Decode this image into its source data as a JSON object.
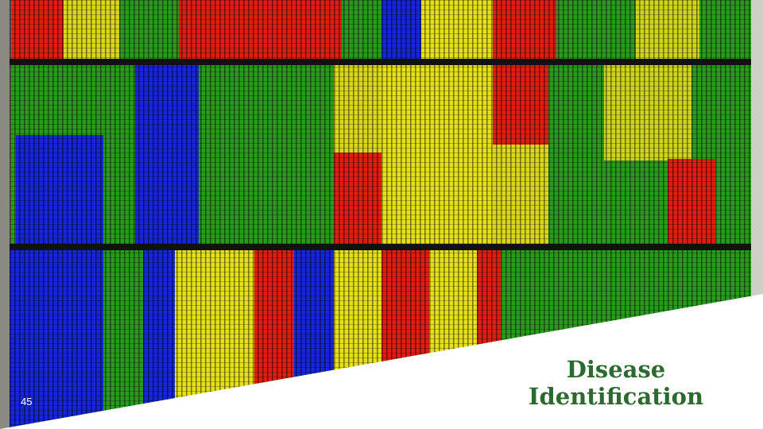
{
  "slide": {
    "title": "Disease Identification",
    "number": "45"
  }
}
